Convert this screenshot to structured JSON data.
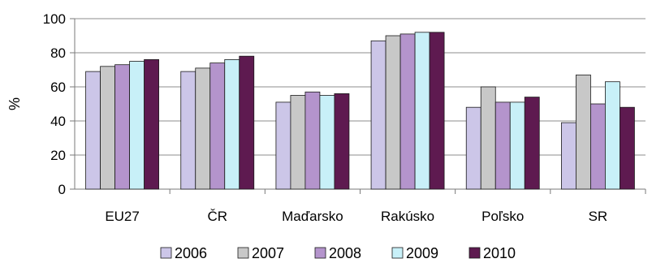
{
  "chart_data": {
    "type": "bar",
    "ylabel": "%",
    "ylim": [
      0,
      100
    ],
    "yticks": [
      0,
      20,
      40,
      60,
      80,
      100
    ],
    "grid": true,
    "legend_position": "bottom",
    "categories": [
      "EU27",
      "ČR",
      "Maďarsko",
      "Rakúsko",
      "Poľsko",
      "SR"
    ],
    "series": [
      {
        "name": "2006",
        "color": "#ccc6e8",
        "values": [
          69,
          69,
          51,
          87,
          48,
          39
        ]
      },
      {
        "name": "2007",
        "color": "#c8c8c8",
        "values": [
          72,
          71,
          55,
          90,
          60,
          67
        ]
      },
      {
        "name": "2008",
        "color": "#b494cc",
        "values": [
          73,
          74,
          57,
          91,
          51,
          50
        ]
      },
      {
        "name": "2009",
        "color": "#c8f0f8",
        "values": [
          75,
          76,
          55,
          92,
          51,
          63
        ]
      },
      {
        "name": "2010",
        "color": "#5e1a50",
        "values": [
          76,
          78,
          56,
          92,
          54,
          48
        ]
      }
    ]
  }
}
